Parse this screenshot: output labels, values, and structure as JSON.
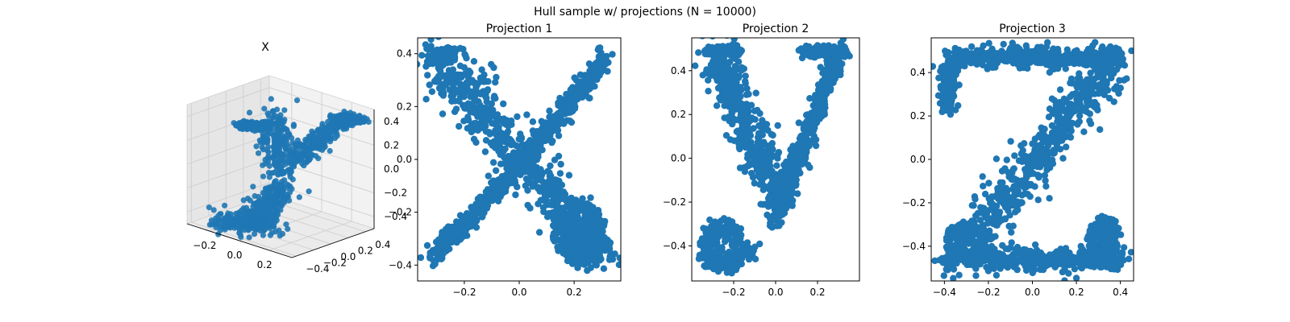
{
  "figure": {
    "suptitle": "Hull sample w/ projections (N = 10000)"
  },
  "chart_data": [
    {
      "type": "scatter",
      "projection": "3d",
      "title": "X",
      "color": "#1f77b4",
      "xlim": [
        -0.35,
        0.35
      ],
      "ylim": [
        -0.45,
        0.5
      ],
      "zlim": [
        -0.5,
        0.5
      ],
      "x_ticks": [
        "−0.2",
        "0.0",
        "0.2"
      ],
      "y_ticks": [
        "−0.4",
        "−0.2",
        "0.0",
        "0.2",
        "0.4"
      ],
      "z_ticks": [
        "−0.4",
        "−0.2",
        "0.0",
        "0.2",
        "0.4"
      ],
      "grid": true
    },
    {
      "type": "scatter",
      "title": "Projection 1",
      "color": "#1f77b4",
      "shape": "X",
      "xlim": [
        -0.37,
        0.37
      ],
      "ylim": [
        -0.46,
        0.46
      ],
      "x_ticks": [
        "−0.2",
        "0.0",
        "0.2"
      ],
      "y_ticks": [
        "−0.4",
        "−0.2",
        "0.0",
        "0.2",
        "0.4"
      ],
      "grid": false
    },
    {
      "type": "scatter",
      "title": "Projection 2",
      "color": "#1f77b4",
      "shape": "y",
      "xlim": [
        -0.4,
        0.4
      ],
      "ylim": [
        -0.56,
        0.55
      ],
      "x_ticks": [
        "−0.2",
        "0.0",
        "0.2"
      ],
      "y_ticks": [
        "−0.4",
        "−0.2",
        "0.0",
        "0.2",
        "0.4"
      ],
      "grid": false
    },
    {
      "type": "scatter",
      "title": "Projection 3",
      "color": "#1f77b4",
      "shape": "Z",
      "xlim": [
        -0.46,
        0.46
      ],
      "ylim": [
        -0.56,
        0.56
      ],
      "x_ticks": [
        "−0.4",
        "−0.2",
        "0.0",
        "0.2",
        "0.4"
      ],
      "y_ticks": [
        "−0.4",
        "−0.2",
        "0.0",
        "0.2",
        "0.4"
      ],
      "grid": false
    }
  ]
}
